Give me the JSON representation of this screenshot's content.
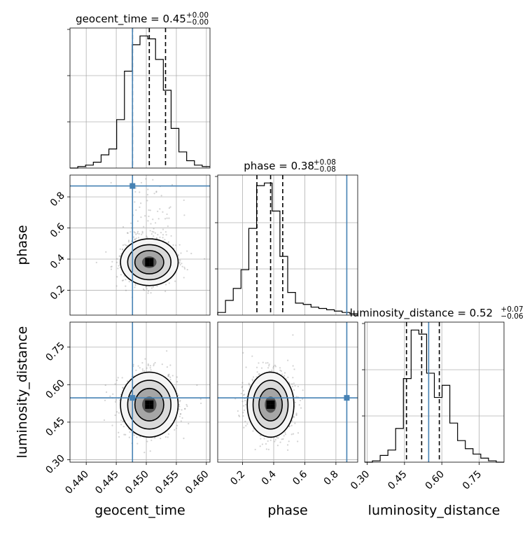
{
  "chart_data": {
    "type": "corner",
    "parameters": [
      "geocent_time",
      "phase",
      "luminosity_distance"
    ],
    "ranges": {
      "geocent_time": [
        0.4373,
        0.4606
      ],
      "phase": [
        0.04,
        0.94
      ],
      "luminosity_distance": [
        0.29,
        0.85
      ]
    },
    "truths": {
      "geocent_time": 0.4477,
      "phase": 0.8699,
      "luminosity_distance": 0.5472
    },
    "quantiles": {
      "geocent_time": [
        0.4477,
        0.4505,
        0.4532
      ],
      "phase": [
        0.292,
        0.38,
        0.458
      ],
      "luminosity_distance": [
        0.458,
        0.519,
        0.59
      ]
    },
    "titles": [
      {
        "param": "geocent_time",
        "name": "geocent_time",
        "value": "0.45",
        "plus": "+0.00",
        "minus": "−0.00"
      },
      {
        "param": "phase",
        "name": "phase",
        "value": "0.38",
        "plus": "+0.08",
        "minus": "−0.08"
      },
      {
        "param": "luminosity_distance",
        "name": "luminosity_distance",
        "value": "0.52",
        "plus": "+0.07",
        "minus": "−0.06"
      }
    ],
    "axis_labels": {
      "geocent_time": "geocent_time",
      "phase": "phase",
      "luminosity_distance": "luminosity_distance"
    },
    "ticks": {
      "geocent_time": [
        0.44,
        0.445,
        0.45,
        0.455,
        0.46
      ],
      "phase": [
        0.2,
        0.4,
        0.6,
        0.8
      ],
      "luminosity_distance": [
        0.3,
        0.45,
        0.6,
        0.75
      ]
    },
    "tick_labels": {
      "geocent_time": [
        "0.440",
        "0.445",
        "0.450",
        "0.455",
        "0.460"
      ],
      "phase": [
        "0.2",
        "0.4",
        "0.6",
        "0.8"
      ],
      "luminosity_distance": [
        "0.30",
        "0.45",
        "0.60",
        "0.75"
      ]
    },
    "histograms": {
      "geocent_time": [
        0,
        1,
        2,
        4,
        9,
        13,
        33,
        66,
        84,
        90,
        88,
        74,
        53,
        27,
        11,
        5,
        2,
        1
      ],
      "phase": [
        2,
        11,
        20,
        34,
        65,
        97,
        99,
        78,
        44,
        17,
        9,
        8,
        6,
        5,
        4,
        3,
        2,
        1
      ],
      "luminosity_distance": [
        0,
        1,
        5,
        9,
        25,
        62,
        98,
        95,
        66,
        48,
        57,
        29,
        16,
        10,
        6,
        3,
        1,
        0
      ]
    },
    "grid": true,
    "colors": {
      "truth": "#4682b4",
      "quantile": "#000000",
      "contour": "#000000",
      "density": "#000000",
      "samples": "#808080"
    }
  }
}
